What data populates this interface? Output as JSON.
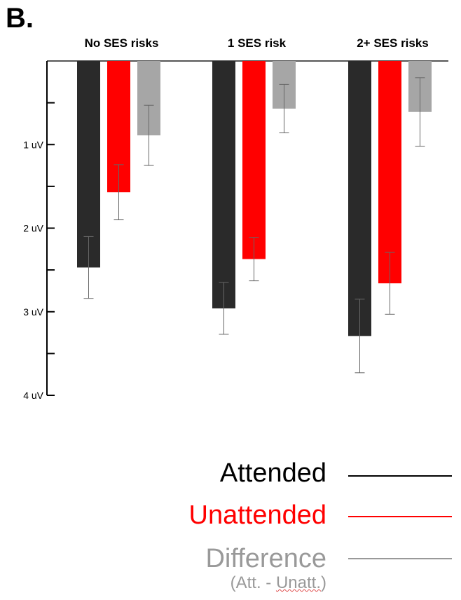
{
  "panel_label": "B.",
  "chart_data": {
    "type": "bar",
    "categories": [
      "No SES risks",
      "1 SES risk",
      "2+ SES risks"
    ],
    "series": [
      {
        "name": "Attended",
        "color": "#2a2a2a",
        "values": [
          2.47,
          2.96,
          3.29
        ],
        "error": [
          0.37,
          0.31,
          0.44
        ]
      },
      {
        "name": "Unattended",
        "color": "#ff0000",
        "values": [
          1.57,
          2.37,
          2.66
        ],
        "error": [
          0.33,
          0.26,
          0.37
        ]
      },
      {
        "name": "Difference",
        "color": "#a6a6a6",
        "values": [
          0.89,
          0.57,
          0.61
        ],
        "error": [
          0.36,
          0.29,
          0.41
        ]
      }
    ],
    "y_axis": {
      "direction": "inverted",
      "ylim": [
        0,
        4
      ],
      "major_ticks": [
        1,
        2,
        3,
        4
      ],
      "tick_labels": [
        "1 uV",
        "2 uV",
        "3 uV",
        "4 uV"
      ],
      "minor_ticks": [
        0.5,
        1.5,
        2.5,
        3.5
      ]
    },
    "legend": {
      "placement": "bottom-right",
      "items": [
        {
          "label": "Attended",
          "color": "#000000"
        },
        {
          "label": "Unattended",
          "color": "#ff0000"
        },
        {
          "label": "Difference",
          "sub_prefix": "(Att. - ",
          "sub_underlined": "Unatt.",
          "sub_suffix": ")",
          "color": "#999999"
        }
      ]
    }
  }
}
